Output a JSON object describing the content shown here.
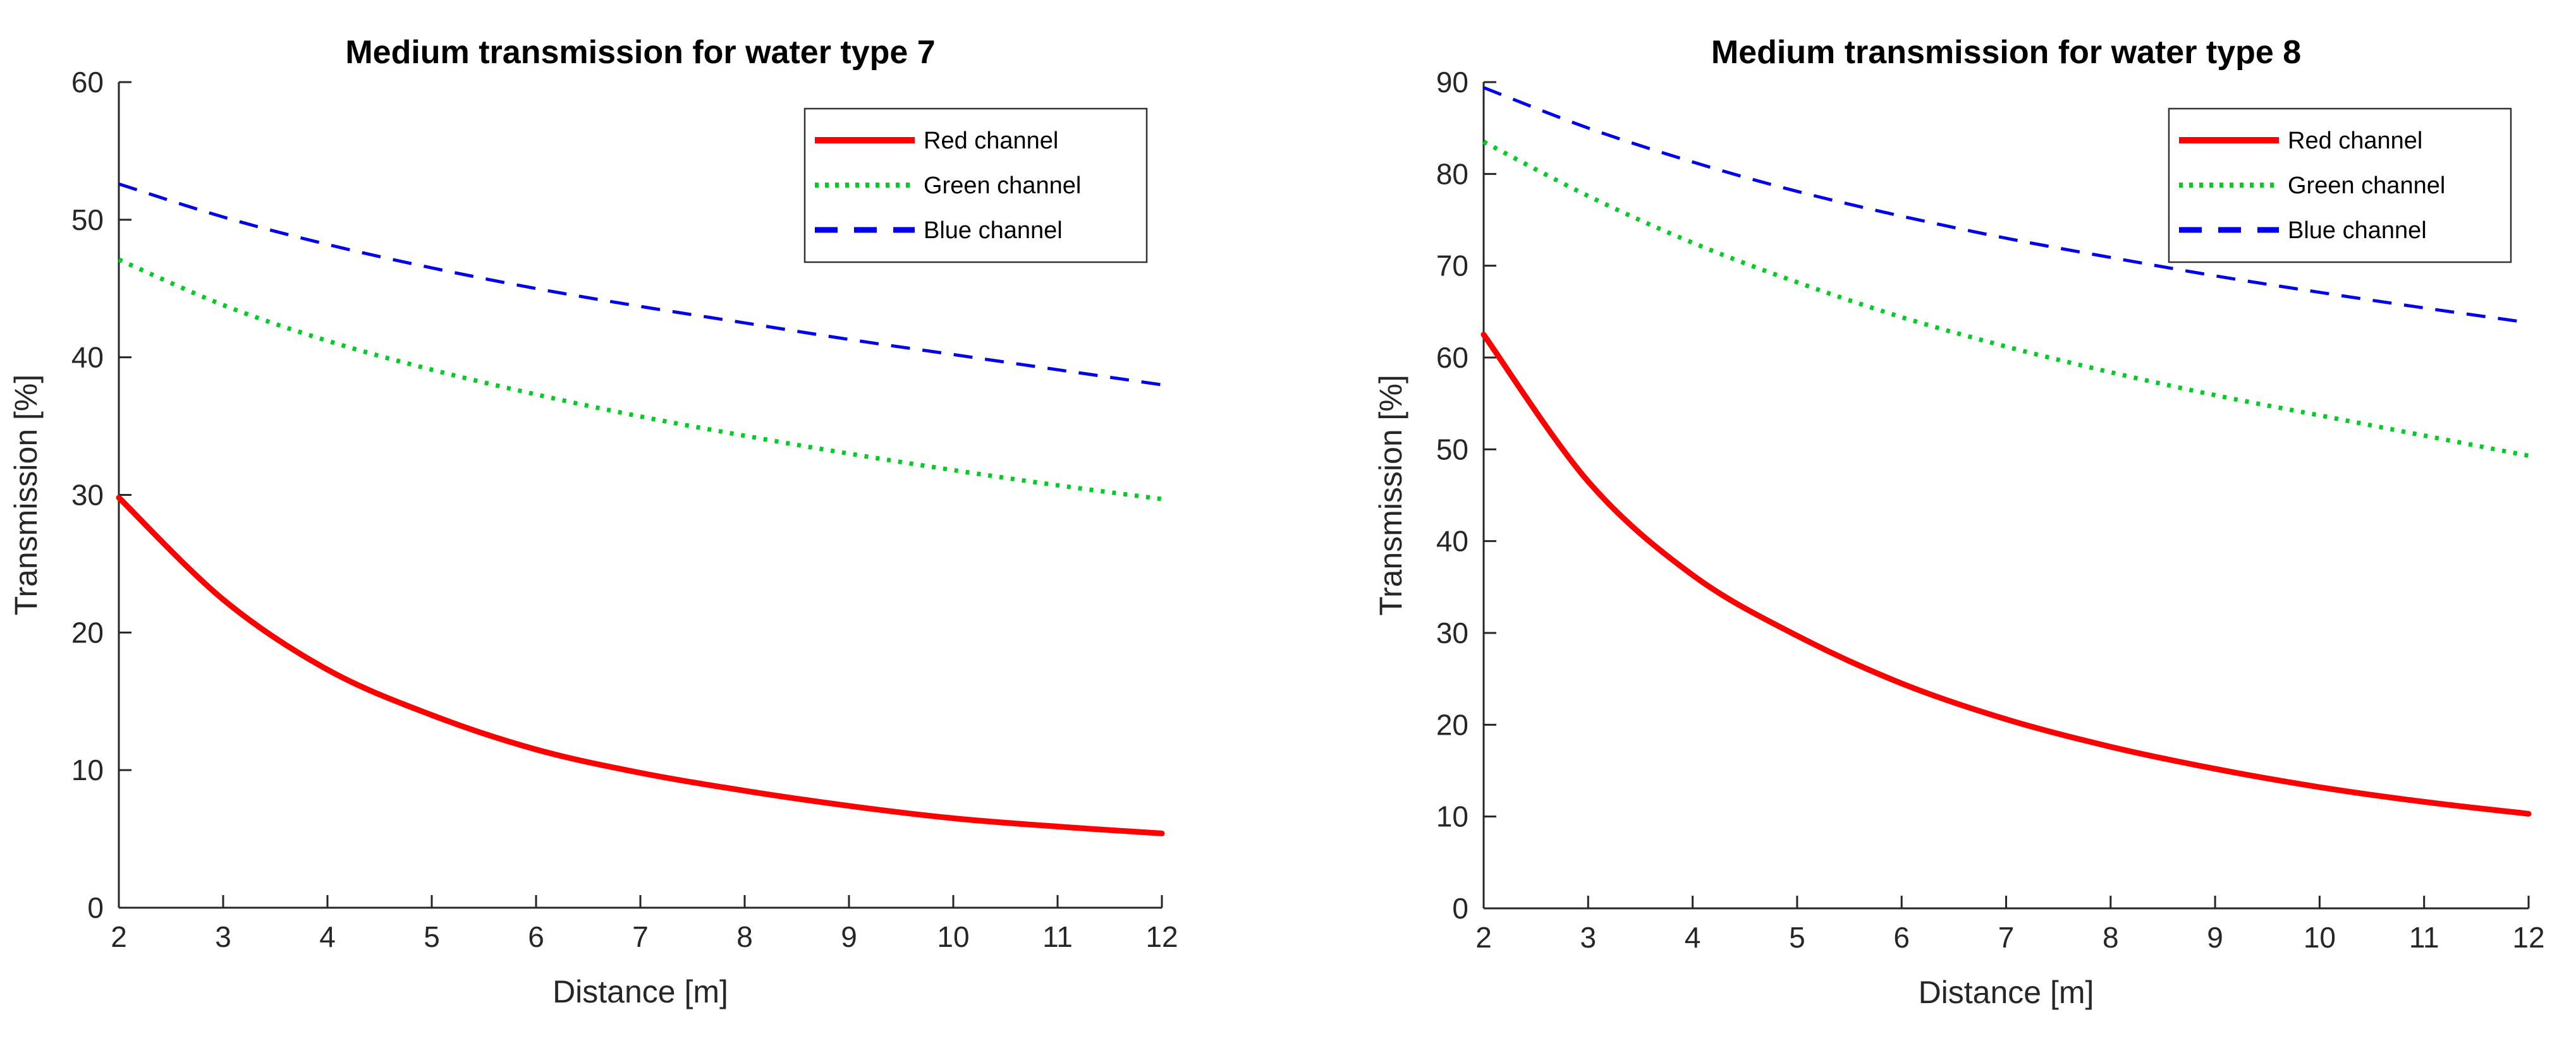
{
  "figure": {
    "background": "#ffffff",
    "text_color": "#000000",
    "axis_color": "#262626"
  },
  "chart_data": [
    {
      "type": "line",
      "title": "Medium transmission for water type 7",
      "xlabel": "Distance [m]",
      "ylabel": "Transmission [%]",
      "x": [
        2,
        3,
        4,
        5,
        6,
        7,
        8,
        9,
        10,
        11,
        12
      ],
      "xlim": [
        2,
        12
      ],
      "ylim": [
        0,
        60
      ],
      "xticks": [
        2,
        3,
        4,
        5,
        6,
        7,
        8,
        9,
        10,
        11,
        12
      ],
      "yticks": [
        0,
        10,
        20,
        30,
        40,
        50,
        60
      ],
      "grid": false,
      "legend_position": "top-right-inside",
      "series": [
        {
          "name": "Red channel",
          "color": "#ff0000",
          "style": "solid",
          "values": [
            29.8,
            22.4,
            17.3,
            14.0,
            11.5,
            9.8,
            8.5,
            7.4,
            6.5,
            5.9,
            5.4
          ]
        },
        {
          "name": "Green channel",
          "color": "#00cc22",
          "style": "dotted",
          "values": [
            47.1,
            43.8,
            41.2,
            39.1,
            37.3,
            35.7,
            34.3,
            33.0,
            31.8,
            30.7,
            29.7
          ]
        },
        {
          "name": "Blue channel",
          "color": "#0000ee",
          "style": "dashed",
          "values": [
            52.6,
            50.2,
            48.2,
            46.5,
            45.0,
            43.7,
            42.5,
            41.3,
            40.2,
            39.1,
            38.0
          ]
        }
      ]
    },
    {
      "type": "line",
      "title": "Medium transmission for water type 8",
      "xlabel": "Distance [m]",
      "ylabel": "Transmission [%]",
      "x": [
        2,
        3,
        4,
        5,
        6,
        7,
        8,
        9,
        10,
        11,
        12
      ],
      "xlim": [
        2,
        12
      ],
      "ylim": [
        0,
        90
      ],
      "xticks": [
        2,
        3,
        4,
        5,
        6,
        7,
        8,
        9,
        10,
        11,
        12
      ],
      "yticks": [
        0,
        10,
        20,
        30,
        40,
        50,
        60,
        70,
        80,
        90
      ],
      "grid": false,
      "legend_position": "top-right-inside",
      "series": [
        {
          "name": "Red channel",
          "color": "#ff0000",
          "style": "solid",
          "values": [
            62.5,
            46.5,
            36.3,
            29.7,
            24.5,
            20.6,
            17.6,
            15.2,
            13.2,
            11.6,
            10.3
          ]
        },
        {
          "name": "Green channel",
          "color": "#00cc22",
          "style": "dotted",
          "values": [
            83.5,
            77.6,
            72.5,
            68.2,
            64.4,
            61.2,
            58.4,
            55.9,
            53.7,
            51.5,
            49.3
          ]
        },
        {
          "name": "Blue channel",
          "color": "#0000ee",
          "style": "dashed",
          "values": [
            89.4,
            85.0,
            81.3,
            78.1,
            75.4,
            73.0,
            70.9,
            68.9,
            67.1,
            65.4,
            63.8
          ]
        }
      ]
    }
  ]
}
